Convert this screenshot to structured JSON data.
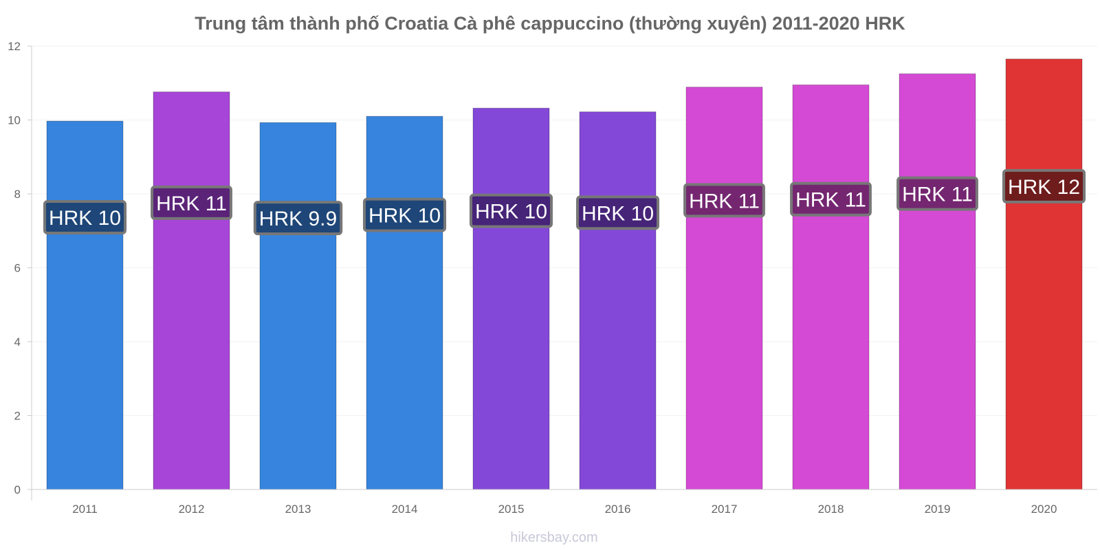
{
  "source_text": "hikersbay.com",
  "chart_data": {
    "type": "bar",
    "title": "Trung tâm thành phố Croatia Cà phê cappuccino (thường xuyên) 2011-2020 HRK",
    "xlabel": "",
    "ylabel": "",
    "ylim": [
      0,
      12
    ],
    "yticks": [
      "0",
      "2",
      "4",
      "6",
      "8",
      "10",
      "12"
    ],
    "grid": true,
    "legend": "none",
    "categories": [
      "2011",
      "2012",
      "2013",
      "2014",
      "2015",
      "2016",
      "2017",
      "2018",
      "2019",
      "2020"
    ],
    "values": [
      9.97,
      10.76,
      9.93,
      10.1,
      10.32,
      10.22,
      10.89,
      10.95,
      11.25,
      11.65
    ],
    "data_labels": [
      "HRK 10",
      "HRK 11",
      "HRK 9.9",
      "HRK 10",
      "HRK 10",
      "HRK 10",
      "HRK 11",
      "HRK 11",
      "HRK 11",
      "HRK 12"
    ],
    "colors": [
      "#3684de",
      "#a745d8",
      "#3684de",
      "#3684de",
      "#8348d8",
      "#8348d8",
      "#d44ad4",
      "#d44ad4",
      "#d44ad4",
      "#e03434"
    ],
    "label_box_colors": [
      "#1e4678",
      "#5a2378",
      "#1e4678",
      "#1e4678",
      "#462478",
      "#462478",
      "#742670",
      "#742670",
      "#742670",
      "#6e1c1c"
    ]
  }
}
